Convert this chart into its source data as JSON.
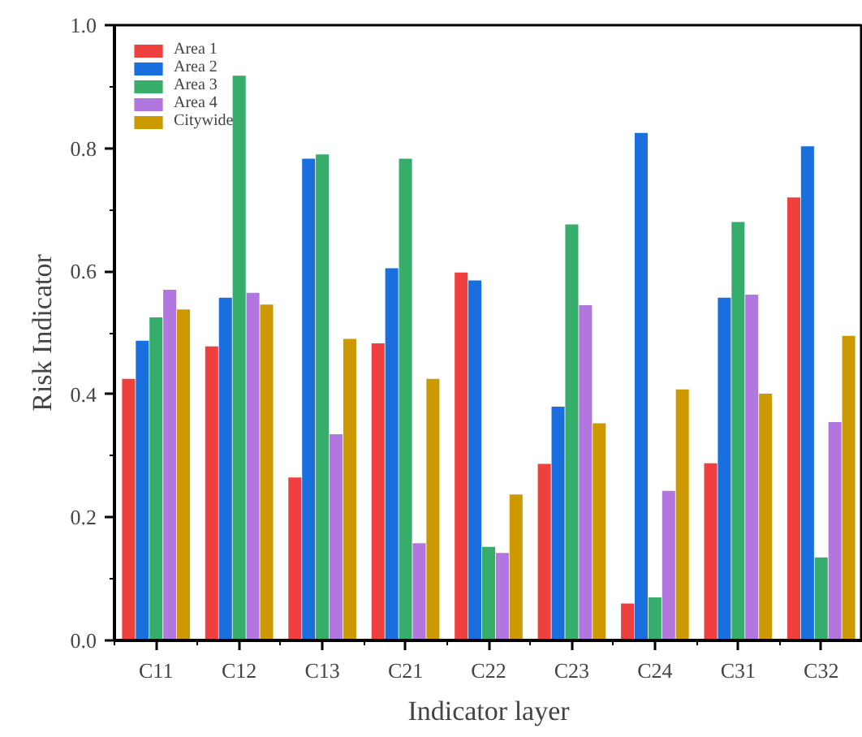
{
  "chart_data": {
    "type": "bar",
    "xlabel": "Indicator layer",
    "ylabel": "Risk Indicator",
    "categories": [
      "C11",
      "C12",
      "C13",
      "C21",
      "C22",
      "C23",
      "C24",
      "C31",
      "C32"
    ],
    "series": [
      {
        "name": "Area 1",
        "color": "#ef4040",
        "values": [
          0.425,
          0.478,
          0.265,
          0.483,
          0.598,
          0.287,
          0.06,
          0.288,
          0.72
        ]
      },
      {
        "name": "Area 2",
        "color": "#1a6fdf",
        "values": [
          0.487,
          0.557,
          0.783,
          0.605,
          0.585,
          0.38,
          0.825,
          0.557,
          0.803
        ]
      },
      {
        "name": "Area 3",
        "color": "#37ad6b",
        "values": [
          0.525,
          0.918,
          0.79,
          0.783,
          0.152,
          0.676,
          0.07,
          0.68,
          0.135
        ]
      },
      {
        "name": "Area 4",
        "color": "#b177de",
        "values": [
          0.57,
          0.565,
          0.335,
          0.158,
          0.142,
          0.545,
          0.243,
          0.562,
          0.355
        ]
      },
      {
        "name": "Citywide",
        "color": "#cc9900",
        "values": [
          0.538,
          0.546,
          0.49,
          0.425,
          0.237,
          0.353,
          0.408,
          0.401,
          0.495
        ]
      }
    ],
    "ylim": [
      0,
      1.0
    ],
    "yticks": [
      {
        "value": 0,
        "label": "0.0"
      },
      {
        "value": 0.2,
        "label": "0.2"
      },
      {
        "value": 0.4,
        "label": "0.4"
      },
      {
        "value": 0.6,
        "label": "0.6"
      },
      {
        "value": 0.8,
        "label": "0.8"
      },
      {
        "value": 1,
        "label": "1.0"
      }
    ],
    "grid": false,
    "legend": "top left"
  }
}
